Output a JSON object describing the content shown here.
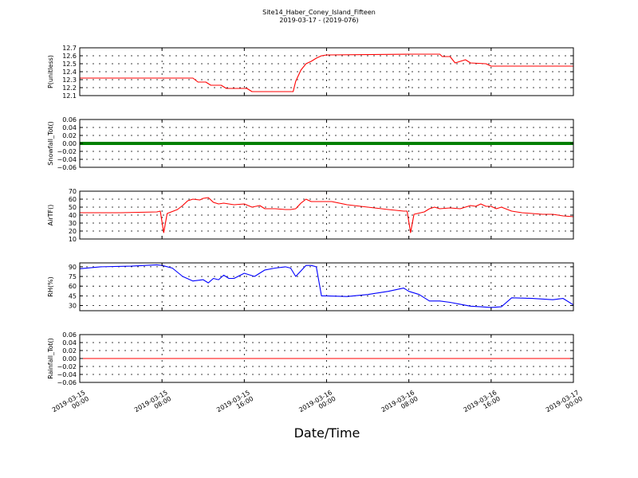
{
  "title": "Site14_Haber_Coney_Island_Fifteen",
  "subtitle": "2019-03-17 - (2019-076)",
  "xlabel": "Date/Time",
  "x_tick_labels": [
    [
      "2019-03-15",
      "00:00"
    ],
    [
      "2019-03-15",
      "08:00"
    ],
    [
      "2019-03-15",
      "16:00"
    ],
    [
      "2019-03-16",
      "00:00"
    ],
    [
      "2019-03-16",
      "08:00"
    ],
    [
      "2019-03-16",
      "16:00"
    ],
    [
      "2019-03-17",
      "00:00"
    ]
  ],
  "chart_data": [
    {
      "type": "line",
      "ylabel": "P(unitless)",
      "color": "#ff0000",
      "ylim": [
        12.1,
        12.7
      ],
      "yticks": [
        "12.1",
        "12.2",
        "12.3",
        "12.4",
        "12.5",
        "12.6",
        "12.7"
      ],
      "xlim": [
        "2019-03-15 00:00",
        "2019-03-17 00:00"
      ],
      "grid": true,
      "x": [
        "2019-03-15 00:00",
        "2019-03-15 11:00",
        "2019-03-15 11:30",
        "2019-03-15 12:15",
        "2019-03-15 12:45",
        "2019-03-15 13:45",
        "2019-03-15 14:15",
        "2019-03-15 16:15",
        "2019-03-15 16:45",
        "2019-03-15 20:45",
        "2019-03-15 21:00",
        "2019-03-15 21:30",
        "2019-03-15 22:00",
        "2019-03-15 22:30",
        "2019-03-15 23:00",
        "2019-03-15 23:30",
        "2019-03-16 00:00",
        "2019-03-16 08:00",
        "2019-03-16 11:00",
        "2019-03-16 11:15",
        "2019-03-16 12:00",
        "2019-03-16 12:30",
        "2019-03-16 13:30",
        "2019-03-16 14:00",
        "2019-03-16 15:30",
        "2019-03-16 16:00",
        "2019-03-17 00:00"
      ],
      "y": [
        12.32,
        12.32,
        12.27,
        12.27,
        12.23,
        12.23,
        12.19,
        12.19,
        12.15,
        12.15,
        12.28,
        12.42,
        12.5,
        12.53,
        12.57,
        12.6,
        12.61,
        12.62,
        12.62,
        12.59,
        12.59,
        12.51,
        12.55,
        12.51,
        12.5,
        12.47,
        12.47
      ]
    },
    {
      "type": "line",
      "ylabel": "Snowfall_Tot()",
      "color": "#008000",
      "ylim": [
        -0.06,
        0.06
      ],
      "yticks": [
        "−0.06",
        "−0.04",
        "−0.02",
        "0.00",
        "0.02",
        "0.04",
        "0.06"
      ],
      "xlim": [
        "2019-03-15 00:00",
        "2019-03-17 00:00"
      ],
      "grid": true,
      "x": [
        "2019-03-15 00:00",
        "2019-03-17 00:00"
      ],
      "y": [
        0,
        0
      ]
    },
    {
      "type": "line",
      "ylabel": "AirTF()",
      "color": "#ff0000",
      "ylim": [
        10,
        70
      ],
      "yticks": [
        "10",
        "20",
        "30",
        "40",
        "50",
        "60",
        "70"
      ],
      "xlim": [
        "2019-03-15 00:00",
        "2019-03-17 00:00"
      ],
      "grid": true,
      "x": [
        "2019-03-15 00:00",
        "2019-03-15 04:00",
        "2019-03-15 07:30",
        "2019-03-15 07:50",
        "2019-03-15 08:10",
        "2019-03-15 08:30",
        "2019-03-15 09:30",
        "2019-03-15 10:00",
        "2019-03-15 10:30",
        "2019-03-15 11:00",
        "2019-03-15 11:40",
        "2019-03-15 12:00",
        "2019-03-15 12:30",
        "2019-03-15 13:00",
        "2019-03-15 13:30",
        "2019-03-15 14:00",
        "2019-03-15 15:00",
        "2019-03-15 16:00",
        "2019-03-15 16:45",
        "2019-03-15 17:30",
        "2019-03-15 18:00",
        "2019-03-15 19:00",
        "2019-03-15 20:00",
        "2019-03-15 20:30",
        "2019-03-15 21:00",
        "2019-03-15 21:30",
        "2019-03-15 22:00",
        "2019-03-15 22:30",
        "2019-03-15 23:00",
        "2019-03-15 23:30",
        "2019-03-16 00:30",
        "2019-03-16 02:00",
        "2019-03-16 04:00",
        "2019-03-16 06:00",
        "2019-03-16 07:30",
        "2019-03-16 07:50",
        "2019-03-16 08:10",
        "2019-03-16 08:30",
        "2019-03-16 09:30",
        "2019-03-16 10:00",
        "2019-03-16 10:30",
        "2019-03-16 11:00",
        "2019-03-16 12:00",
        "2019-03-16 13:00",
        "2019-03-16 14:00",
        "2019-03-16 14:30",
        "2019-03-16 15:00",
        "2019-03-16 15:30",
        "2019-03-16 16:00",
        "2019-03-16 16:30",
        "2019-03-16 17:00",
        "2019-03-16 18:00",
        "2019-03-16 19:00",
        "2019-03-16 21:00",
        "2019-03-16 22:00",
        "2019-03-16 23:00",
        "2019-03-17 00:00"
      ],
      "y": [
        43,
        43,
        44,
        45,
        18,
        42,
        47,
        52,
        58,
        60,
        59,
        61,
        62,
        56,
        54,
        55,
        53,
        54,
        50,
        52,
        48,
        48,
        47,
        47,
        48,
        55,
        60,
        57,
        57,
        57,
        57,
        53,
        50,
        47,
        45,
        45,
        18,
        41,
        44,
        48,
        50,
        48,
        49,
        48,
        52,
        51,
        54,
        51,
        51,
        48,
        50,
        45,
        43,
        41,
        41,
        39,
        38
      ]
    },
    {
      "type": "line",
      "ylabel": "RH(%)",
      "color": "#0000ff",
      "ylim": [
        22,
        96
      ],
      "yticks": [
        "30",
        "45",
        "60",
        "75",
        "90"
      ],
      "xlim": [
        "2019-03-15 00:00",
        "2019-03-17 00:00"
      ],
      "grid": true,
      "x": [
        "2019-03-15 00:00",
        "2019-03-15 02:00",
        "2019-03-15 05:00",
        "2019-03-15 07:30",
        "2019-03-15 08:00",
        "2019-03-15 09:00",
        "2019-03-15 10:00",
        "2019-03-15 11:00",
        "2019-03-15 12:00",
        "2019-03-15 12:30",
        "2019-03-15 13:00",
        "2019-03-15 13:30",
        "2019-03-15 14:00",
        "2019-03-15 14:30",
        "2019-03-15 15:00",
        "2019-03-15 16:00",
        "2019-03-15 17:00",
        "2019-03-15 18:00",
        "2019-03-15 19:00",
        "2019-03-15 20:00",
        "2019-03-15 20:30",
        "2019-03-15 21:00",
        "2019-03-15 22:00",
        "2019-03-15 22:30",
        "2019-03-15 23:00",
        "2019-03-15 23:30",
        "2019-03-16 00:00",
        "2019-03-16 02:00",
        "2019-03-16 04:00",
        "2019-03-16 06:00",
        "2019-03-16 07:30",
        "2019-03-16 08:00",
        "2019-03-16 09:00",
        "2019-03-16 10:00",
        "2019-03-16 11:00",
        "2019-03-16 12:00",
        "2019-03-16 13:00",
        "2019-03-16 14:00",
        "2019-03-16 15:00",
        "2019-03-16 16:00",
        "2019-03-16 17:00",
        "2019-03-16 18:00",
        "2019-03-16 20:00",
        "2019-03-16 22:00",
        "2019-03-16 23:00",
        "2019-03-17 00:00"
      ],
      "y": [
        87,
        90,
        91,
        93,
        92,
        88,
        75,
        68,
        70,
        65,
        72,
        70,
        77,
        72,
        72,
        80,
        75,
        85,
        88,
        90,
        88,
        75,
        92,
        92,
        90,
        45,
        45,
        44,
        47,
        52,
        57,
        52,
        47,
        37,
        37,
        35,
        32,
        29,
        28,
        27,
        28,
        42,
        41,
        39,
        41,
        31
      ]
    },
    {
      "type": "line",
      "ylabel": "Rainfall_Tot()",
      "color": "#ff0000",
      "ylim": [
        -0.06,
        0.06
      ],
      "yticks": [
        "−0.06",
        "−0.04",
        "−0.02",
        "0.00",
        "0.02",
        "0.04",
        "0.06"
      ],
      "xlim": [
        "2019-03-15 00:00",
        "2019-03-17 00:00"
      ],
      "grid": true,
      "x": [
        "2019-03-15 00:00",
        "2019-03-17 00:00"
      ],
      "y": [
        0,
        0
      ]
    }
  ]
}
